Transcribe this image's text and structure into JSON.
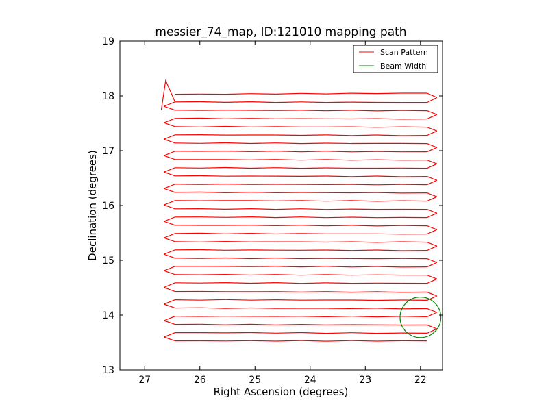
{
  "chart_data": {
    "type": "line",
    "title": "messier_74_map, ID:121010 mapping path",
    "xlabel": "Right Ascension (degrees)",
    "ylabel": "Declination (degrees)",
    "xlim": [
      27.45,
      21.6
    ],
    "ylim": [
      13,
      19
    ],
    "x_ticks": [
      27,
      26,
      25,
      24,
      23,
      22
    ],
    "y_ticks": [
      13,
      14,
      15,
      16,
      17,
      18,
      19
    ],
    "x_tick_labels": [
      "27",
      "26",
      "25",
      "24",
      "23",
      "22"
    ],
    "y_tick_labels": [
      "13",
      "14",
      "15",
      "16",
      "17",
      "18",
      "19"
    ],
    "legend_position": "top-right",
    "grid": false,
    "series": [
      {
        "name": "Scan Pattern",
        "color": "#ff0000",
        "scan_rows": [
          {
            "y_left": 18.03,
            "y_right": 18.05,
            "turn": 17.89
          },
          {
            "y_left": 17.89,
            "y_right": 17.88,
            "turn": 17.74
          },
          {
            "y_left": 17.74,
            "y_right": 17.73,
            "turn": 17.59
          },
          {
            "y_left": 17.59,
            "y_right": 17.58,
            "turn": 17.44
          },
          {
            "y_left": 17.44,
            "y_right": 17.43,
            "turn": 17.29
          },
          {
            "y_left": 17.29,
            "y_right": 17.28,
            "turn": 17.14
          },
          {
            "y_left": 17.14,
            "y_right": 17.13,
            "turn": 16.99
          },
          {
            "y_left": 16.99,
            "y_right": 16.98,
            "turn": 16.84
          },
          {
            "y_left": 16.84,
            "y_right": 16.83,
            "turn": 16.69
          },
          {
            "y_left": 16.69,
            "y_right": 16.68,
            "turn": 16.54
          },
          {
            "y_left": 16.54,
            "y_right": 16.53,
            "turn": 16.39
          },
          {
            "y_left": 16.39,
            "y_right": 16.38,
            "turn": 16.24
          },
          {
            "y_left": 16.24,
            "y_right": 16.23,
            "turn": 16.09
          },
          {
            "y_left": 16.09,
            "y_right": 16.08,
            "turn": 15.94
          },
          {
            "y_left": 15.94,
            "y_right": 15.93,
            "turn": 15.79
          },
          {
            "y_left": 15.79,
            "y_right": 15.78,
            "turn": 15.64
          },
          {
            "y_left": 15.64,
            "y_right": 15.63,
            "turn": 15.49
          },
          {
            "y_left": 15.49,
            "y_right": 15.48,
            "turn": 15.34
          },
          {
            "y_left": 15.34,
            "y_right": 15.33,
            "turn": 15.19
          },
          {
            "y_left": 15.19,
            "y_right": 15.18,
            "turn": 15.04
          },
          {
            "y_left": 15.04,
            "y_right": 15.03,
            "turn": 14.89
          },
          {
            "y_left": 14.89,
            "y_right": 14.88,
            "turn": 14.74
          },
          {
            "y_left": 14.74,
            "y_right": 14.73,
            "turn": 14.59
          },
          {
            "y_left": 14.59,
            "y_right": 14.58,
            "turn": 14.43
          },
          {
            "y_left": 14.43,
            "y_right": 14.42,
            "turn": 14.28
          },
          {
            "y_left": 14.28,
            "y_right": 14.27,
            "turn": 14.13
          },
          {
            "y_left": 14.13,
            "y_right": 14.12,
            "turn": 13.98
          },
          {
            "y_left": 13.98,
            "y_right": 13.97,
            "turn": 13.83
          },
          {
            "y_left": 13.83,
            "y_right": 13.82,
            "turn": 13.68
          },
          {
            "y_left": 13.68,
            "y_right": 13.67,
            "turn": 13.53
          },
          {
            "y_left": 13.53,
            "y_right": 13.53,
            "turn": null
          }
        ],
        "x_left": 26.45,
        "x_right": 21.88,
        "x_turn_left": 26.65,
        "x_turn_right": 21.7
      },
      {
        "name": "Beam Width",
        "color": "#008000",
        "shape": "circle",
        "center": [
          22.0,
          13.96
        ],
        "radius": 0.37
      }
    ]
  }
}
